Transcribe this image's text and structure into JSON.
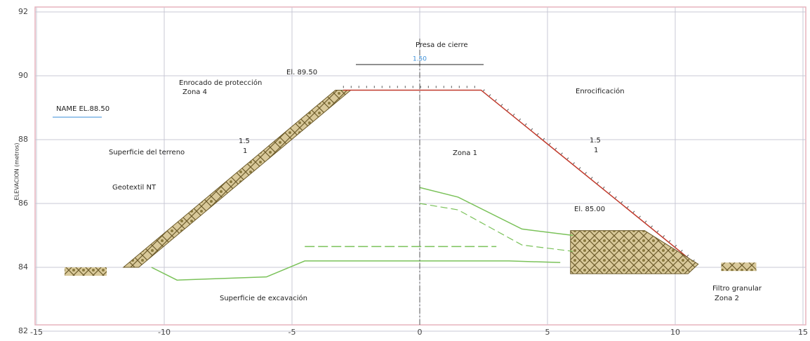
{
  "axes": {
    "x_ticks": [
      -15,
      -10,
      -5,
      0,
      5,
      10,
      15
    ],
    "y_ticks": [
      82,
      84,
      86,
      88,
      90,
      92
    ],
    "y_label": "ELEVACION (metros)"
  },
  "labels": {
    "dam": "Presa de cierre",
    "crest_width": "1.50",
    "crest_elev": "El. 89.50",
    "protection": "Enrocado de protección",
    "zone4": "Zona 4",
    "name_level": "NAME EL.88.50",
    "right_slope": "Enrocificación",
    "slope_left_h": "1.5",
    "slope_left_v": "1",
    "slope_right_h": "1.5",
    "slope_right_v": "1",
    "ground": "Superficie del terreno",
    "geotextile": "Geotextil NT",
    "zone1": "Zona 1",
    "toe_elev": "El. 85.00",
    "excavation": "Superficie de excavación",
    "filter": "Filtro granular",
    "zone2": "Zona 2"
  }
}
